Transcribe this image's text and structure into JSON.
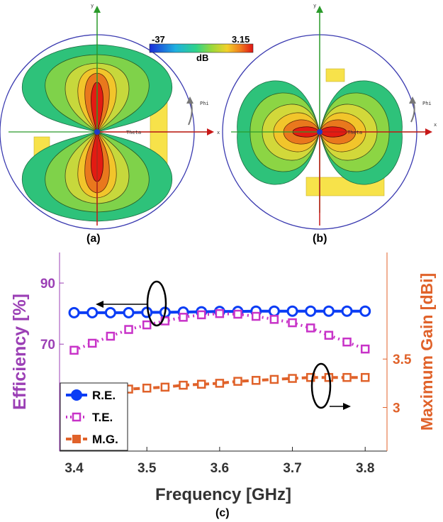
{
  "colorbar": {
    "min_label": "-37",
    "max_label": "3.15",
    "unit": "dB"
  },
  "patterns": {
    "left": {
      "caption": "(a)",
      "axis_y": "y",
      "axis_x": "x",
      "phi_label": "Phi",
      "theta_label": "Theta"
    },
    "right": {
      "caption": "(b)",
      "axis_y": "y",
      "axis_x": "x",
      "phi_label": "Phi",
      "theta_label": "Theta"
    }
  },
  "chart_caption": "(c)",
  "colors": {
    "re": "#0b3df5",
    "te": "#c833c8",
    "mg": "#e0622a",
    "left_axis": "#9b3fb5",
    "right_axis": "#e0622a"
  },
  "chart_data": {
    "type": "line",
    "xlabel": "Frequency [GHz]",
    "ylabel_left": "Efficiency [%]",
    "ylabel_right": "Maximum Gain [dBi]",
    "xlim": [
      3.38,
      3.83
    ],
    "xticks": [
      "3.4",
      "3.5",
      "3.6",
      "3.7",
      "3.8"
    ],
    "yticks_left": [
      "70",
      "90"
    ],
    "yticks_right": [
      "3",
      "3.5"
    ],
    "ylim_left": [
      35,
      100
    ],
    "ylim_right": [
      2.55,
      4.6
    ],
    "grid": false,
    "legend_position": "bottom-left",
    "legend": [
      "R.E.",
      "T.E.",
      "M.G."
    ],
    "series": [
      {
        "name": "R.E.",
        "axis": "left",
        "style": "solid-circle",
        "x": [
          3.4,
          3.425,
          3.45,
          3.475,
          3.5,
          3.525,
          3.55,
          3.575,
          3.6,
          3.625,
          3.65,
          3.675,
          3.7,
          3.725,
          3.75,
          3.775,
          3.8
        ],
        "values": [
          80.3,
          80.3,
          80.3,
          80.3,
          80.4,
          80.4,
          80.5,
          80.6,
          80.7,
          80.7,
          80.8,
          80.8,
          80.8,
          80.8,
          80.8,
          80.8,
          80.8
        ]
      },
      {
        "name": "T.E.",
        "axis": "left",
        "style": "dotted-square",
        "x": [
          3.4,
          3.425,
          3.45,
          3.475,
          3.5,
          3.525,
          3.55,
          3.575,
          3.6,
          3.625,
          3.65,
          3.675,
          3.7,
          3.725,
          3.75,
          3.775,
          3.8
        ],
        "values": [
          68.0,
          70.3,
          72.6,
          74.8,
          76.3,
          77.6,
          78.8,
          79.6,
          80.0,
          79.8,
          79.1,
          78.1,
          77.0,
          75.3,
          72.9,
          70.7,
          68.4
        ]
      },
      {
        "name": "M.G.",
        "axis": "right",
        "style": "dashed-square",
        "x": [
          3.4,
          3.425,
          3.45,
          3.475,
          3.5,
          3.525,
          3.55,
          3.575,
          3.6,
          3.625,
          3.65,
          3.675,
          3.7,
          3.725,
          3.75,
          3.775,
          3.8
        ],
        "values": [
          3.15,
          3.16,
          3.17,
          3.19,
          3.2,
          3.21,
          3.23,
          3.24,
          3.25,
          3.27,
          3.28,
          3.29,
          3.3,
          3.31,
          3.31,
          3.31,
          3.31
        ]
      }
    ]
  }
}
